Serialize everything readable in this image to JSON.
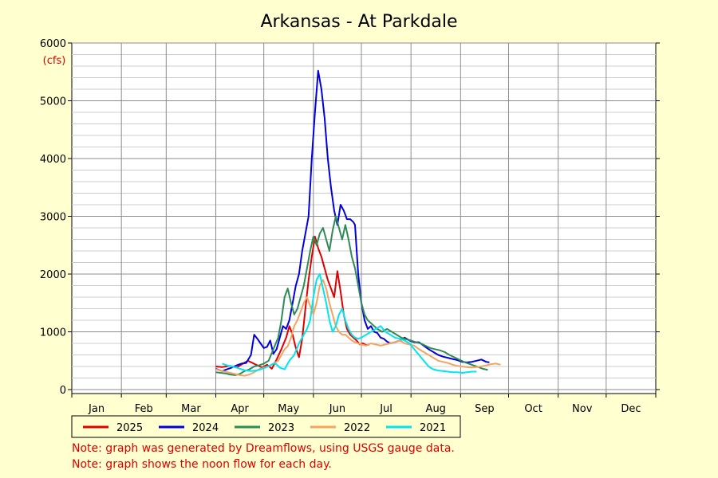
{
  "chart_data": {
    "type": "line",
    "title": "Arkansas - At Parkdale",
    "ylabel": "(cfs)",
    "xlabel": "",
    "ylim": [
      0,
      6000
    ],
    "y_ticks": [
      0,
      1000,
      2000,
      3000,
      4000,
      5000,
      6000
    ],
    "x_unit": "day of year",
    "xlim": [
      1,
      365
    ],
    "months": [
      "Jan",
      "Feb",
      "Mar",
      "Apr",
      "May",
      "Jun",
      "Jul",
      "Aug",
      "Sep",
      "Oct",
      "Nov",
      "Dec"
    ],
    "grid": true,
    "legend_position": "bottom",
    "series": [
      {
        "name": "2025",
        "color": "#e00000",
        "points": [
          [
            91,
            400
          ],
          [
            95,
            390
          ],
          [
            100,
            410
          ],
          [
            104,
            380
          ],
          [
            108,
            450
          ],
          [
            111,
            500
          ],
          [
            114,
            460
          ],
          [
            117,
            420
          ],
          [
            120,
            380
          ],
          [
            123,
            430
          ],
          [
            126,
            360
          ],
          [
            129,
            520
          ],
          [
            132,
            700
          ],
          [
            135,
            900
          ],
          [
            137,
            1100
          ],
          [
            139,
            950
          ],
          [
            141,
            720
          ],
          [
            143,
            560
          ],
          [
            145,
            880
          ],
          [
            147,
            1400
          ],
          [
            149,
            1900
          ],
          [
            151,
            2300
          ],
          [
            153,
            2650
          ],
          [
            155,
            2450
          ],
          [
            157,
            2300
          ],
          [
            159,
            2100
          ],
          [
            161,
            1900
          ],
          [
            163,
            1750
          ],
          [
            165,
            1600
          ],
          [
            167,
            2050
          ],
          [
            169,
            1700
          ],
          [
            171,
            1300
          ],
          [
            173,
            1050
          ],
          [
            175,
            950
          ],
          [
            177,
            900
          ],
          [
            179,
            850
          ],
          [
            181,
            780
          ],
          [
            183,
            800
          ],
          [
            185,
            770
          ],
          [
            187,
            780
          ]
        ]
      },
      {
        "name": "2024",
        "color": "#0000e0",
        "points": [
          [
            91,
            360
          ],
          [
            95,
            320
          ],
          [
            98,
            350
          ],
          [
            101,
            380
          ],
          [
            104,
            420
          ],
          [
            107,
            450
          ],
          [
            110,
            460
          ],
          [
            113,
            600
          ],
          [
            115,
            950
          ],
          [
            117,
            880
          ],
          [
            119,
            800
          ],
          [
            121,
            720
          ],
          [
            123,
            740
          ],
          [
            125,
            850
          ],
          [
            127,
            620
          ],
          [
            129,
            700
          ],
          [
            131,
            900
          ],
          [
            133,
            1100
          ],
          [
            135,
            1050
          ],
          [
            137,
            1200
          ],
          [
            139,
            1500
          ],
          [
            141,
            1800
          ],
          [
            143,
            2000
          ],
          [
            145,
            2400
          ],
          [
            147,
            2700
          ],
          [
            149,
            3000
          ],
          [
            151,
            4000
          ],
          [
            153,
            4800
          ],
          [
            155,
            5520
          ],
          [
            157,
            5200
          ],
          [
            159,
            4700
          ],
          [
            161,
            4000
          ],
          [
            163,
            3500
          ],
          [
            165,
            3100
          ],
          [
            167,
            2850
          ],
          [
            169,
            3200
          ],
          [
            171,
            3100
          ],
          [
            173,
            2950
          ],
          [
            175,
            2950
          ],
          [
            177,
            2900
          ],
          [
            178,
            2850
          ],
          [
            180,
            2000
          ],
          [
            182,
            1500
          ],
          [
            184,
            1200
          ],
          [
            186,
            1050
          ],
          [
            188,
            1100
          ],
          [
            190,
            1000
          ],
          [
            192,
            980
          ],
          [
            194,
            900
          ],
          [
            196,
            880
          ],
          [
            198,
            830
          ],
          [
            200,
            800
          ],
          [
            203,
            820
          ],
          [
            206,
            850
          ],
          [
            209,
            900
          ],
          [
            212,
            850
          ],
          [
            215,
            820
          ],
          [
            218,
            820
          ],
          [
            221,
            760
          ],
          [
            224,
            700
          ],
          [
            227,
            650
          ],
          [
            230,
            600
          ],
          [
            233,
            570
          ],
          [
            236,
            550
          ],
          [
            239,
            530
          ],
          [
            242,
            510
          ],
          [
            245,
            480
          ],
          [
            248,
            470
          ],
          [
            251,
            480
          ],
          [
            254,
            500
          ],
          [
            257,
            520
          ],
          [
            260,
            480
          ],
          [
            262,
            470
          ]
        ]
      },
      {
        "name": "2023",
        "color": "#2e8b57",
        "points": [
          [
            91,
            300
          ],
          [
            94,
            290
          ],
          [
            97,
            280
          ],
          [
            100,
            260
          ],
          [
            103,
            250
          ],
          [
            106,
            270
          ],
          [
            109,
            320
          ],
          [
            112,
            350
          ],
          [
            115,
            400
          ],
          [
            118,
            420
          ],
          [
            121,
            450
          ],
          [
            124,
            500
          ],
          [
            127,
            700
          ],
          [
            130,
            900
          ],
          [
            132,
            1200
          ],
          [
            134,
            1600
          ],
          [
            136,
            1750
          ],
          [
            138,
            1500
          ],
          [
            140,
            1300
          ],
          [
            142,
            1400
          ],
          [
            144,
            1600
          ],
          [
            146,
            1800
          ],
          [
            148,
            2100
          ],
          [
            150,
            2400
          ],
          [
            152,
            2650
          ],
          [
            154,
            2500
          ],
          [
            156,
            2700
          ],
          [
            158,
            2800
          ],
          [
            160,
            2600
          ],
          [
            162,
            2400
          ],
          [
            164,
            2750
          ],
          [
            166,
            3000
          ],
          [
            168,
            2800
          ],
          [
            170,
            2600
          ],
          [
            172,
            2850
          ],
          [
            174,
            2600
          ],
          [
            176,
            2300
          ],
          [
            178,
            2100
          ],
          [
            180,
            1800
          ],
          [
            182,
            1500
          ],
          [
            184,
            1300
          ],
          [
            186,
            1200
          ],
          [
            188,
            1150
          ],
          [
            190,
            1100
          ],
          [
            192,
            1050
          ],
          [
            195,
            1000
          ],
          [
            198,
            1050
          ],
          [
            201,
            1000
          ],
          [
            204,
            950
          ],
          [
            207,
            900
          ],
          [
            210,
            870
          ],
          [
            213,
            850
          ],
          [
            216,
            820
          ],
          [
            219,
            800
          ],
          [
            222,
            760
          ],
          [
            225,
            720
          ],
          [
            228,
            700
          ],
          [
            231,
            680
          ],
          [
            234,
            650
          ],
          [
            237,
            600
          ],
          [
            240,
            560
          ],
          [
            243,
            520
          ],
          [
            246,
            480
          ],
          [
            249,
            450
          ],
          [
            252,
            420
          ],
          [
            255,
            390
          ],
          [
            258,
            360
          ],
          [
            261,
            340
          ]
        ]
      },
      {
        "name": "2022",
        "color": "#f4a460",
        "points": [
          [
            91,
            350
          ],
          [
            94,
            330
          ],
          [
            97,
            310
          ],
          [
            100,
            290
          ],
          [
            103,
            270
          ],
          [
            106,
            250
          ],
          [
            109,
            240
          ],
          [
            112,
            260
          ],
          [
            115,
            300
          ],
          [
            118,
            350
          ],
          [
            121,
            380
          ],
          [
            124,
            400
          ],
          [
            127,
            450
          ],
          [
            130,
            500
          ],
          [
            132,
            600
          ],
          [
            134,
            700
          ],
          [
            136,
            750
          ],
          [
            138,
            900
          ],
          [
            140,
            1100
          ],
          [
            142,
            1200
          ],
          [
            144,
            1350
          ],
          [
            146,
            1500
          ],
          [
            148,
            1600
          ],
          [
            150,
            1450
          ],
          [
            152,
            1300
          ],
          [
            154,
            1500
          ],
          [
            156,
            1800
          ],
          [
            158,
            1900
          ],
          [
            160,
            1750
          ],
          [
            162,
            1500
          ],
          [
            164,
            1300
          ],
          [
            166,
            1100
          ],
          [
            168,
            1000
          ],
          [
            170,
            950
          ],
          [
            172,
            950
          ],
          [
            174,
            900
          ],
          [
            176,
            850
          ],
          [
            178,
            820
          ],
          [
            180,
            800
          ],
          [
            182,
            780
          ],
          [
            185,
            760
          ],
          [
            188,
            800
          ],
          [
            191,
            780
          ],
          [
            194,
            760
          ],
          [
            197,
            780
          ],
          [
            200,
            800
          ],
          [
            203,
            820
          ],
          [
            206,
            850
          ],
          [
            209,
            800
          ],
          [
            212,
            780
          ],
          [
            215,
            760
          ],
          [
            218,
            700
          ],
          [
            221,
            650
          ],
          [
            224,
            600
          ],
          [
            227,
            550
          ],
          [
            230,
            500
          ],
          [
            233,
            480
          ],
          [
            236,
            460
          ],
          [
            239,
            430
          ],
          [
            242,
            410
          ],
          [
            245,
            400
          ],
          [
            248,
            390
          ],
          [
            251,
            380
          ],
          [
            254,
            390
          ],
          [
            257,
            400
          ],
          [
            260,
            420
          ],
          [
            263,
            440
          ],
          [
            266,
            450
          ],
          [
            269,
            430
          ]
        ]
      },
      {
        "name": "2021",
        "color": "#00e5ee",
        "points": [
          [
            95,
            450
          ],
          [
            98,
            420
          ],
          [
            101,
            400
          ],
          [
            104,
            380
          ],
          [
            107,
            350
          ],
          [
            110,
            330
          ],
          [
            113,
            320
          ],
          [
            116,
            330
          ],
          [
            119,
            350
          ],
          [
            122,
            380
          ],
          [
            125,
            420
          ],
          [
            128,
            460
          ],
          [
            131,
            380
          ],
          [
            134,
            350
          ],
          [
            137,
            500
          ],
          [
            140,
            600
          ],
          [
            143,
            800
          ],
          [
            146,
            950
          ],
          [
            148,
            1050
          ],
          [
            150,
            1200
          ],
          [
            152,
            1600
          ],
          [
            154,
            1900
          ],
          [
            156,
            2000
          ],
          [
            158,
            1750
          ],
          [
            160,
            1500
          ],
          [
            162,
            1200
          ],
          [
            164,
            1000
          ],
          [
            166,
            1100
          ],
          [
            168,
            1300
          ],
          [
            170,
            1400
          ],
          [
            172,
            1200
          ],
          [
            174,
            1050
          ],
          [
            176,
            950
          ],
          [
            178,
            900
          ],
          [
            180,
            880
          ],
          [
            182,
            900
          ],
          [
            185,
            950
          ],
          [
            188,
            1000
          ],
          [
            191,
            1050
          ],
          [
            194,
            1100
          ],
          [
            197,
            1000
          ],
          [
            200,
            950
          ],
          [
            203,
            900
          ],
          [
            206,
            880
          ],
          [
            209,
            850
          ],
          [
            212,
            800
          ],
          [
            215,
            700
          ],
          [
            218,
            600
          ],
          [
            221,
            500
          ],
          [
            224,
            400
          ],
          [
            227,
            350
          ],
          [
            230,
            330
          ],
          [
            233,
            320
          ],
          [
            236,
            310
          ],
          [
            239,
            300
          ],
          [
            242,
            300
          ],
          [
            245,
            290
          ],
          [
            248,
            300
          ],
          [
            251,
            310
          ],
          [
            254,
            310
          ]
        ]
      }
    ],
    "notes": [
      "Note: graph was generated by Dreamflows, using USGS gauge data.",
      "Note: graph shows the noon flow for each day."
    ]
  }
}
